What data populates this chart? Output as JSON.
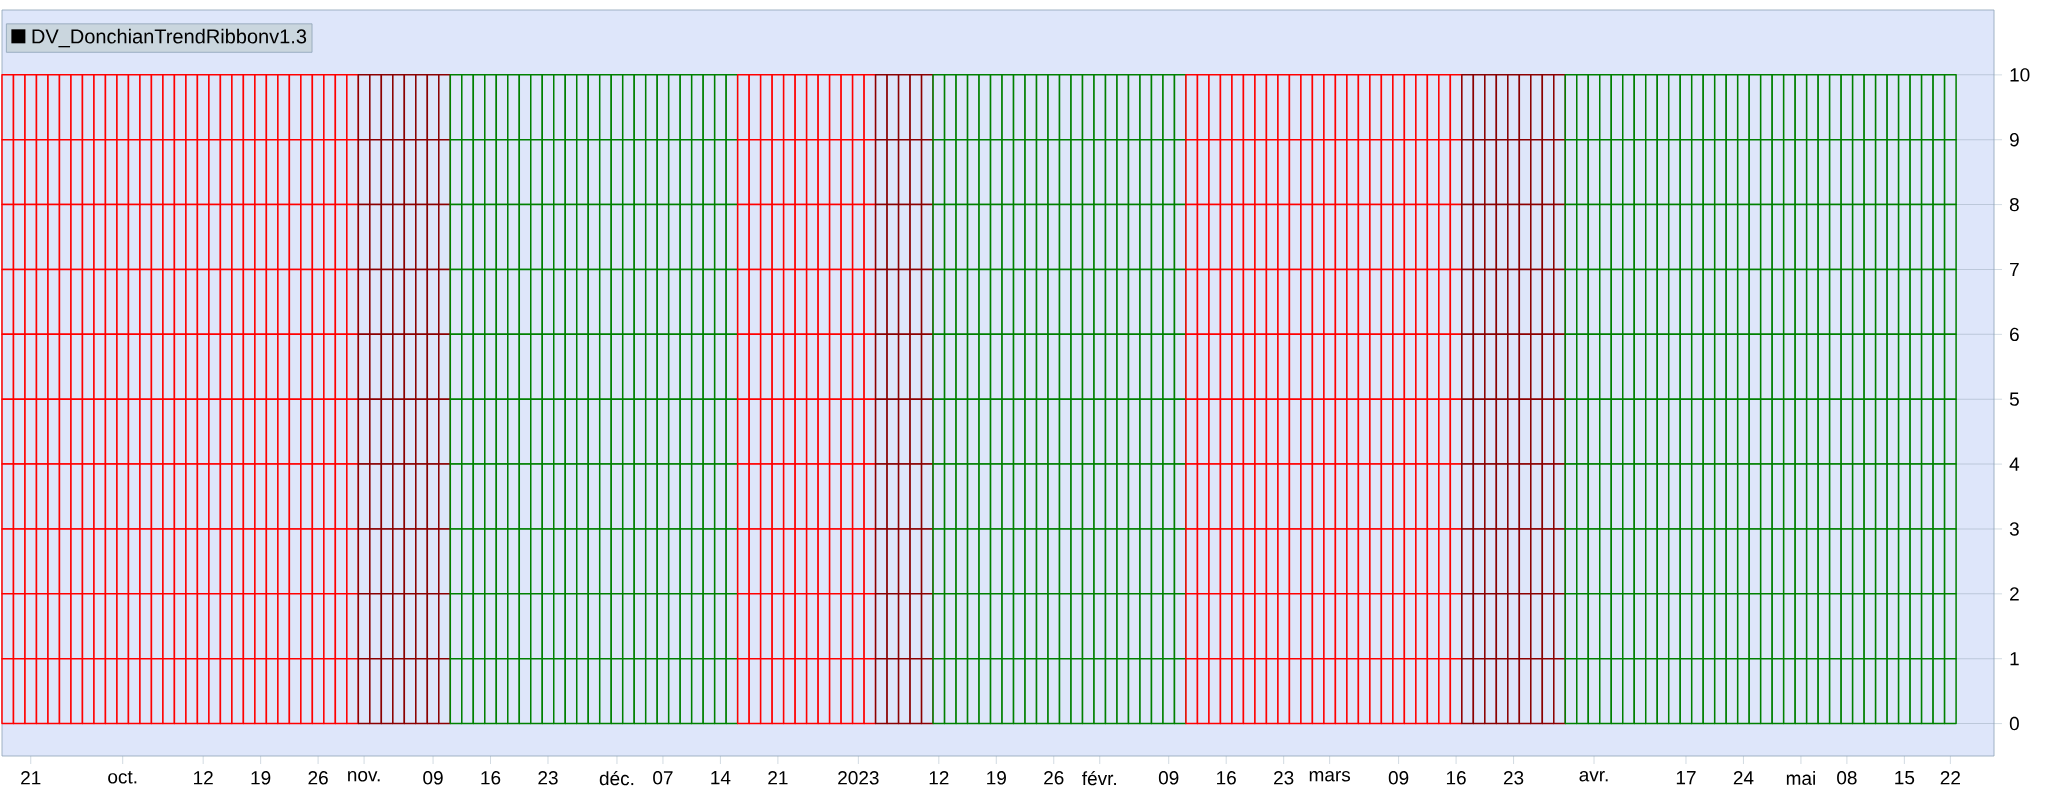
{
  "chart_data": {
    "type": "bar",
    "title": "DV_DonchianTrendRibbonv1.3",
    "stacked": true,
    "categories": [
      null,
      null,
      "21",
      null,
      null,
      null,
      null,
      null,
      null,
      null,
      "oct.",
      null,
      null,
      null,
      null,
      null,
      null,
      "12",
      null,
      null,
      null,
      null,
      "19",
      null,
      null,
      null,
      null,
      "26",
      null,
      null,
      null,
      "nov.",
      null,
      null,
      null,
      null,
      null,
      "09",
      null,
      null,
      null,
      null,
      "16",
      null,
      null,
      null,
      null,
      "23",
      null,
      null,
      null,
      null,
      null,
      "déc.",
      null,
      null,
      null,
      "07",
      null,
      null,
      null,
      null,
      "14",
      null,
      null,
      null,
      null,
      "21",
      null,
      null,
      null,
      null,
      null,
      null,
      "2023",
      null,
      null,
      null,
      null,
      null,
      null,
      "12",
      null,
      null,
      null,
      null,
      "19",
      null,
      null,
      null,
      null,
      "26",
      null,
      null,
      null,
      "févr.",
      null,
      null,
      null,
      null,
      null,
      "09",
      null,
      null,
      null,
      null,
      "16",
      null,
      null,
      null,
      null,
      "23",
      null,
      null,
      null,
      "mars",
      null,
      null,
      null,
      null,
      null,
      "09",
      null,
      null,
      null,
      null,
      "16",
      null,
      null,
      null,
      null,
      "23",
      null,
      null,
      null,
      null,
      null,
      null,
      "avr.",
      null,
      null,
      null,
      null,
      null,
      null,
      null,
      "17",
      null,
      null,
      null,
      null,
      "24",
      null,
      null,
      null,
      null,
      "mai",
      null,
      null,
      null,
      "08",
      null,
      null,
      null,
      null,
      "15",
      null,
      null,
      null,
      "22"
    ],
    "colors": [
      "#ff0000",
      "#ff0000",
      "#ff0000",
      "#ff0000",
      "#ff0000",
      "#ff0000",
      "#ff0000",
      "#ff0000",
      "#ff0000",
      "#ff0000",
      "#ff0000",
      "#ff0000",
      "#ff0000",
      "#ff0000",
      "#ff0000",
      "#ff0000",
      "#ff0000",
      "#ff0000",
      "#ff0000",
      "#ff0000",
      "#ff0000",
      "#ff0000",
      "#ff0000",
      "#ff0000",
      "#ff0000",
      "#ff0000",
      "#ff0000",
      "#ff0000",
      "#ff0000",
      "#ff0000",
      "#ff0000",
      "#8b0000",
      "#8b0000",
      "#8b0000",
      "#8b0000",
      "#8b0000",
      "#8b0000",
      "#8b0000",
      "#8b0000",
      "#008000",
      "#008000",
      "#008000",
      "#008000",
      "#008000",
      "#008000",
      "#008000",
      "#008000",
      "#008000",
      "#008000",
      "#008000",
      "#008000",
      "#008000",
      "#008000",
      "#008000",
      "#008000",
      "#008000",
      "#008000",
      "#008000",
      "#008000",
      "#008000",
      "#008000",
      "#008000",
      "#008000",
      "#008000",
      "#ff0000",
      "#ff0000",
      "#ff0000",
      "#ff0000",
      "#ff0000",
      "#ff0000",
      "#ff0000",
      "#ff0000",
      "#ff0000",
      "#ff0000",
      "#ff0000",
      "#ff0000",
      "#8b0000",
      "#8b0000",
      "#8b0000",
      "#8b0000",
      "#8b0000",
      "#008000",
      "#008000",
      "#008000",
      "#008000",
      "#008000",
      "#008000",
      "#008000",
      "#008000",
      "#008000",
      "#008000",
      "#008000",
      "#008000",
      "#008000",
      "#008000",
      "#008000",
      "#008000",
      "#008000",
      "#008000",
      "#008000",
      "#008000",
      "#008000",
      "#008000",
      "#ff0000",
      "#ff0000",
      "#ff0000",
      "#ff0000",
      "#ff0000",
      "#ff0000",
      "#ff0000",
      "#ff0000",
      "#ff0000",
      "#ff0000",
      "#ff0000",
      "#ff0000",
      "#ff0000",
      "#ff0000",
      "#ff0000",
      "#ff0000",
      "#ff0000",
      "#ff0000",
      "#ff0000",
      "#ff0000",
      "#ff0000",
      "#ff0000",
      "#ff0000",
      "#ff0000",
      "#8b0000",
      "#8b0000",
      "#8b0000",
      "#8b0000",
      "#8b0000",
      "#8b0000",
      "#8b0000",
      "#8b0000",
      "#8b0000",
      "#008000",
      "#008000",
      "#008000",
      "#008000",
      "#008000",
      "#008000",
      "#008000",
      "#008000",
      "#008000",
      "#008000",
      "#008000",
      "#008000",
      "#008000",
      "#008000",
      "#008000",
      "#008000",
      "#008000",
      "#008000",
      "#008000",
      "#008000",
      "#008000",
      "#008000",
      "#008000",
      "#008000",
      "#008000",
      "#008000",
      "#008000",
      "#008000",
      "#008000",
      "#008000",
      "#008000",
      "#008000",
      "#008000",
      "#008000"
    ],
    "series": [
      {
        "values": [
          1,
          1,
          1,
          1,
          1,
          1,
          1,
          1,
          1,
          1,
          1,
          1,
          1,
          1,
          1,
          1,
          1,
          1,
          1,
          1,
          1,
          1,
          1,
          1,
          1,
          1,
          1,
          1,
          1,
          1,
          1,
          1,
          1,
          1,
          1,
          1,
          1,
          1,
          1,
          1,
          1,
          1,
          1,
          1,
          1,
          1,
          1,
          1,
          1,
          1,
          1,
          1,
          1,
          1,
          1,
          1,
          1,
          1,
          1,
          1,
          1,
          1,
          1,
          1,
          1,
          1,
          1,
          1,
          1,
          1,
          1,
          1,
          1,
          1,
          1,
          1,
          1,
          1,
          1,
          1,
          1,
          1,
          1,
          1,
          1,
          1,
          1,
          1,
          1,
          1,
          1,
          1,
          1,
          1,
          1,
          1,
          1,
          1,
          1,
          1,
          1,
          1,
          1,
          1,
          1,
          1,
          1,
          1,
          1,
          1,
          1,
          1,
          1,
          1,
          1,
          1,
          1,
          1,
          1,
          1,
          1,
          1,
          1,
          1,
          1,
          1,
          1,
          1,
          1,
          1,
          1,
          1,
          1,
          1,
          1,
          1,
          1,
          1,
          1,
          1,
          1,
          1,
          1,
          1,
          1,
          1,
          1,
          1,
          1,
          1,
          1,
          1,
          1,
          1,
          1,
          1,
          1,
          1,
          1,
          1,
          1,
          1,
          1,
          1,
          1,
          1,
          1,
          1,
          1,
          1
        ]
      },
      {
        "values": [
          1,
          1,
          1,
          1,
          1,
          1,
          1,
          1,
          1,
          1,
          1,
          1,
          1,
          1,
          1,
          1,
          1,
          1,
          1,
          1,
          1,
          1,
          1,
          1,
          1,
          1,
          1,
          1,
          1,
          1,
          1,
          1,
          1,
          1,
          1,
          1,
          1,
          1,
          1,
          1,
          1,
          1,
          1,
          1,
          1,
          1,
          1,
          1,
          1,
          1,
          1,
          1,
          1,
          1,
          1,
          1,
          1,
          1,
          1,
          1,
          1,
          1,
          1,
          1,
          1,
          1,
          1,
          1,
          1,
          1,
          1,
          1,
          1,
          1,
          1,
          1,
          1,
          1,
          1,
          1,
          1,
          1,
          1,
          1,
          1,
          1,
          1,
          1,
          1,
          1,
          1,
          1,
          1,
          1,
          1,
          1,
          1,
          1,
          1,
          1,
          1,
          1,
          1,
          1,
          1,
          1,
          1,
          1,
          1,
          1,
          1,
          1,
          1,
          1,
          1,
          1,
          1,
          1,
          1,
          1,
          1,
          1,
          1,
          1,
          1,
          1,
          1,
          1,
          1,
          1,
          1,
          1,
          1,
          1,
          1,
          1,
          1,
          1,
          1,
          1,
          1,
          1,
          1,
          1,
          1,
          1,
          1,
          1,
          1,
          1,
          1,
          1,
          1,
          1,
          1,
          1,
          1,
          1,
          1,
          1,
          1,
          1,
          1,
          1,
          1,
          1,
          1,
          1,
          1,
          1
        ]
      },
      {
        "values": [
          1,
          1,
          1,
          1,
          1,
          1,
          1,
          1,
          1,
          1,
          1,
          1,
          1,
          1,
          1,
          1,
          1,
          1,
          1,
          1,
          1,
          1,
          1,
          1,
          1,
          1,
          1,
          1,
          1,
          1,
          1,
          1,
          1,
          1,
          1,
          1,
          1,
          1,
          1,
          1,
          1,
          1,
          1,
          1,
          1,
          1,
          1,
          1,
          1,
          1,
          1,
          1,
          1,
          1,
          1,
          1,
          1,
          1,
          1,
          1,
          1,
          1,
          1,
          1,
          1,
          1,
          1,
          1,
          1,
          1,
          1,
          1,
          1,
          1,
          1,
          1,
          1,
          1,
          1,
          1,
          1,
          1,
          1,
          1,
          1,
          1,
          1,
          1,
          1,
          1,
          1,
          1,
          1,
          1,
          1,
          1,
          1,
          1,
          1,
          1,
          1,
          1,
          1,
          1,
          1,
          1,
          1,
          1,
          1,
          1,
          1,
          1,
          1,
          1,
          1,
          1,
          1,
          1,
          1,
          1,
          1,
          1,
          1,
          1,
          1,
          1,
          1,
          1,
          1,
          1,
          1,
          1,
          1,
          1,
          1,
          1,
          1,
          1,
          1,
          1,
          1,
          1,
          1,
          1,
          1,
          1,
          1,
          1,
          1,
          1,
          1,
          1,
          1,
          1,
          1,
          1,
          1,
          1,
          1,
          1,
          1,
          1,
          1,
          1,
          1,
          1,
          1,
          1,
          1,
          1
        ]
      },
      {
        "values": [
          1,
          1,
          1,
          1,
          1,
          1,
          1,
          1,
          1,
          1,
          1,
          1,
          1,
          1,
          1,
          1,
          1,
          1,
          1,
          1,
          1,
          1,
          1,
          1,
          1,
          1,
          1,
          1,
          1,
          1,
          1,
          1,
          1,
          1,
          1,
          1,
          1,
          1,
          1,
          1,
          1,
          1,
          1,
          1,
          1,
          1,
          1,
          1,
          1,
          1,
          1,
          1,
          1,
          1,
          1,
          1,
          1,
          1,
          1,
          1,
          1,
          1,
          1,
          1,
          1,
          1,
          1,
          1,
          1,
          1,
          1,
          1,
          1,
          1,
          1,
          1,
          1,
          1,
          1,
          1,
          1,
          1,
          1,
          1,
          1,
          1,
          1,
          1,
          1,
          1,
          1,
          1,
          1,
          1,
          1,
          1,
          1,
          1,
          1,
          1,
          1,
          1,
          1,
          1,
          1,
          1,
          1,
          1,
          1,
          1,
          1,
          1,
          1,
          1,
          1,
          1,
          1,
          1,
          1,
          1,
          1,
          1,
          1,
          1,
          1,
          1,
          1,
          1,
          1,
          1,
          1,
          1,
          1,
          1,
          1,
          1,
          1,
          1,
          1,
          1,
          1,
          1,
          1,
          1,
          1,
          1,
          1,
          1,
          1,
          1,
          1,
          1,
          1,
          1,
          1,
          1,
          1,
          1,
          1,
          1,
          1,
          1,
          1,
          1,
          1,
          1,
          1,
          1,
          1,
          1
        ]
      },
      {
        "values": [
          1,
          1,
          1,
          1,
          1,
          1,
          1,
          1,
          1,
          1,
          1,
          1,
          1,
          1,
          1,
          1,
          1,
          1,
          1,
          1,
          1,
          1,
          1,
          1,
          1,
          1,
          1,
          1,
          1,
          1,
          1,
          1,
          1,
          1,
          1,
          1,
          1,
          1,
          1,
          1,
          1,
          1,
          1,
          1,
          1,
          1,
          1,
          1,
          1,
          1,
          1,
          1,
          1,
          1,
          1,
          1,
          1,
          1,
          1,
          1,
          1,
          1,
          1,
          1,
          1,
          1,
          1,
          1,
          1,
          1,
          1,
          1,
          1,
          1,
          1,
          1,
          1,
          1,
          1,
          1,
          1,
          1,
          1,
          1,
          1,
          1,
          1,
          1,
          1,
          1,
          1,
          1,
          1,
          1,
          1,
          1,
          1,
          1,
          1,
          1,
          1,
          1,
          1,
          1,
          1,
          1,
          1,
          1,
          1,
          1,
          1,
          1,
          1,
          1,
          1,
          1,
          1,
          1,
          1,
          1,
          1,
          1,
          1,
          1,
          1,
          1,
          1,
          1,
          1,
          1,
          1,
          1,
          1,
          1,
          1,
          1,
          1,
          1,
          1,
          1,
          1,
          1,
          1,
          1,
          1,
          1,
          1,
          1,
          1,
          1,
          1,
          1,
          1,
          1,
          1,
          1,
          1,
          1,
          1,
          1,
          1,
          1,
          1,
          1,
          1,
          1,
          1,
          1,
          1,
          1
        ]
      },
      {
        "values": [
          1,
          1,
          1,
          1,
          1,
          1,
          1,
          1,
          1,
          1,
          1,
          1,
          1,
          1,
          1,
          1,
          1,
          1,
          1,
          1,
          1,
          1,
          1,
          1,
          1,
          1,
          1,
          1,
          1,
          1,
          1,
          1,
          1,
          1,
          1,
          1,
          1,
          1,
          1,
          1,
          1,
          1,
          1,
          1,
          1,
          1,
          1,
          1,
          1,
          1,
          1,
          1,
          1,
          1,
          1,
          1,
          1,
          1,
          1,
          1,
          1,
          1,
          1,
          1,
          1,
          1,
          1,
          1,
          1,
          1,
          1,
          1,
          1,
          1,
          1,
          1,
          1,
          1,
          1,
          1,
          1,
          1,
          1,
          1,
          1,
          1,
          1,
          1,
          1,
          1,
          1,
          1,
          1,
          1,
          1,
          1,
          1,
          1,
          1,
          1,
          1,
          1,
          1,
          1,
          1,
          1,
          1,
          1,
          1,
          1,
          1,
          1,
          1,
          1,
          1,
          1,
          1,
          1,
          1,
          1,
          1,
          1,
          1,
          1,
          1,
          1,
          1,
          1,
          1,
          1,
          1,
          1,
          1,
          1,
          1,
          1,
          1,
          1,
          1,
          1,
          1,
          1,
          1,
          1,
          1,
          1,
          1,
          1,
          1,
          1,
          1,
          1,
          1,
          1,
          1,
          1,
          1,
          1,
          1,
          1,
          1,
          1,
          1,
          1,
          1,
          1,
          1,
          1,
          1,
          1
        ]
      },
      {
        "values": [
          1,
          1,
          1,
          1,
          1,
          1,
          1,
          1,
          1,
          1,
          1,
          1,
          1,
          1,
          1,
          1,
          1,
          1,
          1,
          1,
          1,
          1,
          1,
          1,
          1,
          1,
          1,
          1,
          1,
          1,
          1,
          1,
          1,
          1,
          1,
          1,
          1,
          1,
          1,
          1,
          1,
          1,
          1,
          1,
          1,
          1,
          1,
          1,
          1,
          1,
          1,
          1,
          1,
          1,
          1,
          1,
          1,
          1,
          1,
          1,
          1,
          1,
          1,
          1,
          1,
          1,
          1,
          1,
          1,
          1,
          1,
          1,
          1,
          1,
          1,
          1,
          1,
          1,
          1,
          1,
          1,
          1,
          1,
          1,
          1,
          1,
          1,
          1,
          1,
          1,
          1,
          1,
          1,
          1,
          1,
          1,
          1,
          1,
          1,
          1,
          1,
          1,
          1,
          1,
          1,
          1,
          1,
          1,
          1,
          1,
          1,
          1,
          1,
          1,
          1,
          1,
          1,
          1,
          1,
          1,
          1,
          1,
          1,
          1,
          1,
          1,
          1,
          1,
          1,
          1,
          1,
          1,
          1,
          1,
          1,
          1,
          1,
          1,
          1,
          1,
          1,
          1,
          1,
          1,
          1,
          1,
          1,
          1,
          1,
          1,
          1,
          1,
          1,
          1,
          1,
          1,
          1,
          1,
          1,
          1,
          1,
          1,
          1,
          1,
          1,
          1,
          1,
          1,
          1,
          1
        ]
      },
      {
        "values": [
          1,
          1,
          1,
          1,
          1,
          1,
          1,
          1,
          1,
          1,
          1,
          1,
          1,
          1,
          1,
          1,
          1,
          1,
          1,
          1,
          1,
          1,
          1,
          1,
          1,
          1,
          1,
          1,
          1,
          1,
          1,
          1,
          1,
          1,
          1,
          1,
          1,
          1,
          1,
          1,
          1,
          1,
          1,
          1,
          1,
          1,
          1,
          1,
          1,
          1,
          1,
          1,
          1,
          1,
          1,
          1,
          1,
          1,
          1,
          1,
          1,
          1,
          1,
          1,
          1,
          1,
          1,
          1,
          1,
          1,
          1,
          1,
          1,
          1,
          1,
          1,
          1,
          1,
          1,
          1,
          1,
          1,
          1,
          1,
          1,
          1,
          1,
          1,
          1,
          1,
          1,
          1,
          1,
          1,
          1,
          1,
          1,
          1,
          1,
          1,
          1,
          1,
          1,
          1,
          1,
          1,
          1,
          1,
          1,
          1,
          1,
          1,
          1,
          1,
          1,
          1,
          1,
          1,
          1,
          1,
          1,
          1,
          1,
          1,
          1,
          1,
          1,
          1,
          1,
          1,
          1,
          1,
          1,
          1,
          1,
          1,
          1,
          1,
          1,
          1,
          1,
          1,
          1,
          1,
          1,
          1,
          1,
          1,
          1,
          1,
          1,
          1,
          1,
          1,
          1,
          1,
          1,
          1,
          1,
          1,
          1,
          1,
          1,
          1,
          1,
          1,
          1,
          1,
          1,
          1
        ]
      },
      {
        "values": [
          1,
          1,
          1,
          1,
          1,
          1,
          1,
          1,
          1,
          1,
          1,
          1,
          1,
          1,
          1,
          1,
          1,
          1,
          1,
          1,
          1,
          1,
          1,
          1,
          1,
          1,
          1,
          1,
          1,
          1,
          1,
          1,
          1,
          1,
          1,
          1,
          1,
          1,
          1,
          1,
          1,
          1,
          1,
          1,
          1,
          1,
          1,
          1,
          1,
          1,
          1,
          1,
          1,
          1,
          1,
          1,
          1,
          1,
          1,
          1,
          1,
          1,
          1,
          1,
          1,
          1,
          1,
          1,
          1,
          1,
          1,
          1,
          1,
          1,
          1,
          1,
          1,
          1,
          1,
          1,
          1,
          1,
          1,
          1,
          1,
          1,
          1,
          1,
          1,
          1,
          1,
          1,
          1,
          1,
          1,
          1,
          1,
          1,
          1,
          1,
          1,
          1,
          1,
          1,
          1,
          1,
          1,
          1,
          1,
          1,
          1,
          1,
          1,
          1,
          1,
          1,
          1,
          1,
          1,
          1,
          1,
          1,
          1,
          1,
          1,
          1,
          1,
          1,
          1,
          1,
          1,
          1,
          1,
          1,
          1,
          1,
          1,
          1,
          1,
          1,
          1,
          1,
          1,
          1,
          1,
          1,
          1,
          1,
          1,
          1,
          1,
          1,
          1,
          1,
          1,
          1,
          1,
          1,
          1,
          1,
          1,
          1,
          1,
          1,
          1,
          1,
          1,
          1,
          1,
          1
        ]
      },
      {
        "values": [
          1,
          1,
          1,
          1,
          1,
          1,
          1,
          1,
          1,
          1,
          1,
          1,
          1,
          1,
          1,
          1,
          1,
          1,
          1,
          1,
          1,
          1,
          1,
          1,
          1,
          1,
          1,
          1,
          1,
          1,
          1,
          1,
          1,
          1,
          1,
          1,
          1,
          1,
          1,
          1,
          1,
          1,
          1,
          1,
          1,
          1,
          1,
          1,
          1,
          1,
          1,
          1,
          1,
          1,
          1,
          1,
          1,
          1,
          1,
          1,
          1,
          1,
          1,
          1,
          1,
          1,
          1,
          1,
          1,
          1,
          1,
          1,
          1,
          1,
          1,
          1,
          1,
          1,
          1,
          1,
          1,
          1,
          1,
          1,
          1,
          1,
          1,
          1,
          1,
          1,
          1,
          1,
          1,
          1,
          1,
          1,
          1,
          1,
          1,
          1,
          1,
          1,
          1,
          1,
          1,
          1,
          1,
          1,
          1,
          1,
          1,
          1,
          1,
          1,
          1,
          1,
          1,
          1,
          1,
          1,
          1,
          1,
          1,
          1,
          1,
          1,
          1,
          1,
          1,
          1,
          1,
          1,
          1,
          1,
          1,
          1,
          1,
          1,
          1,
          1,
          1,
          1,
          1,
          1,
          1,
          1,
          1,
          1,
          1,
          1,
          1,
          1,
          1,
          1,
          1,
          1,
          1,
          1,
          1,
          1,
          1,
          1,
          1,
          1,
          1,
          1,
          1,
          1,
          1,
          1
        ]
      }
    ],
    "ylim": [
      -0.5,
      11
    ],
    "yticks": [
      0,
      1,
      2,
      3,
      4,
      5,
      6,
      7,
      8,
      9,
      10
    ],
    "grid": "y"
  }
}
